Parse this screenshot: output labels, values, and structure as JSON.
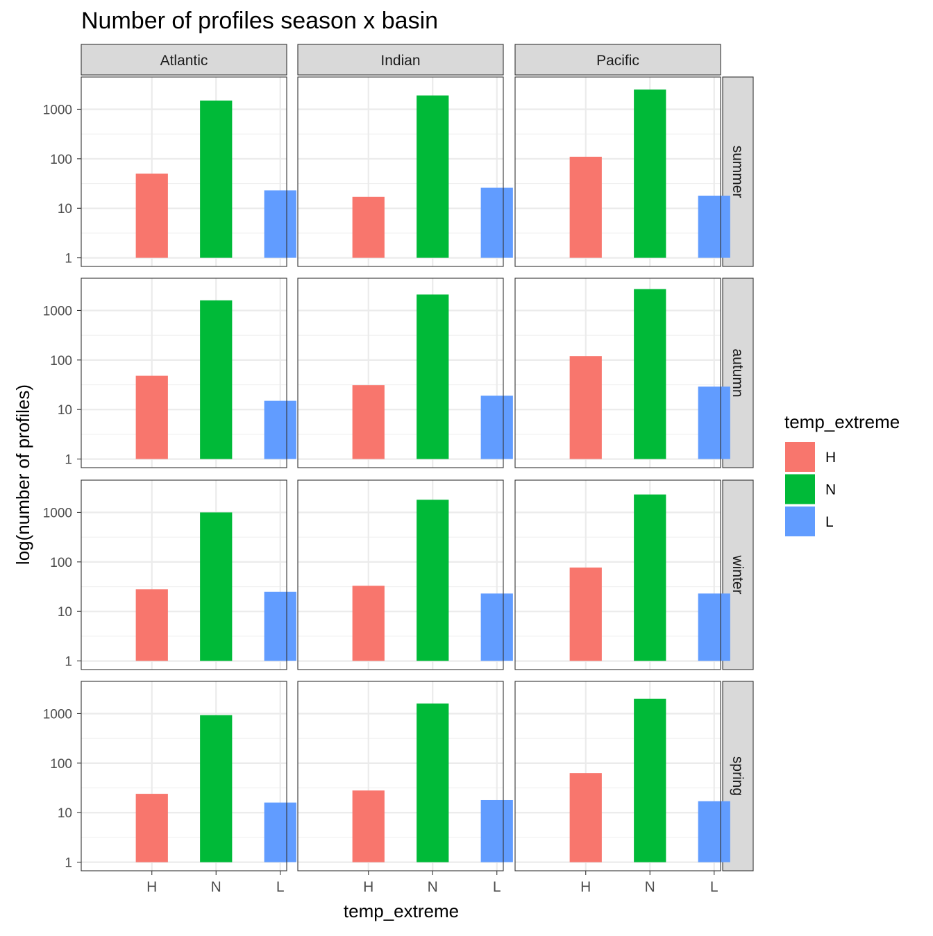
{
  "chart_data": {
    "type": "bar",
    "title": "Number of profiles season x basin",
    "xlabel": "temp_extreme",
    "ylabel": "log(number of profiles)",
    "y_scale": "log10",
    "ylim": [
      1,
      3000
    ],
    "y_ticks": [
      1,
      10,
      100,
      1000
    ],
    "y_tick_labels": [
      "1",
      "10",
      "100",
      "1000"
    ],
    "categories": [
      "H",
      "N",
      "L"
    ],
    "facet_columns": [
      "Atlantic",
      "Indian",
      "Pacific"
    ],
    "facet_rows": [
      "summer",
      "autumn",
      "winter",
      "spring"
    ],
    "legend": {
      "title": "temp_extreme",
      "position": "right",
      "entries": [
        {
          "key": "H",
          "color": "#F8766D"
        },
        {
          "key": "N",
          "color": "#00BA38"
        },
        {
          "key": "L",
          "color": "#619CFF"
        }
      ]
    },
    "panels": [
      {
        "row": "summer",
        "col": "Atlantic",
        "values": [
          50,
          1500,
          23
        ]
      },
      {
        "row": "summer",
        "col": "Indian",
        "values": [
          17,
          1900,
          26
        ]
      },
      {
        "row": "summer",
        "col": "Pacific",
        "values": [
          110,
          2500,
          18
        ]
      },
      {
        "row": "autumn",
        "col": "Atlantic",
        "values": [
          48,
          1600,
          15
        ]
      },
      {
        "row": "autumn",
        "col": "Indian",
        "values": [
          31,
          2100,
          19
        ]
      },
      {
        "row": "autumn",
        "col": "Pacific",
        "values": [
          120,
          2700,
          29
        ]
      },
      {
        "row": "winter",
        "col": "Atlantic",
        "values": [
          28,
          1000,
          25
        ]
      },
      {
        "row": "winter",
        "col": "Indian",
        "values": [
          33,
          1800,
          23
        ]
      },
      {
        "row": "winter",
        "col": "Pacific",
        "values": [
          77,
          2300,
          23
        ]
      },
      {
        "row": "spring",
        "col": "Atlantic",
        "values": [
          24,
          930,
          16
        ]
      },
      {
        "row": "spring",
        "col": "Indian",
        "values": [
          28,
          1600,
          18
        ]
      },
      {
        "row": "spring",
        "col": "Pacific",
        "values": [
          63,
          2000,
          17
        ]
      }
    ]
  }
}
